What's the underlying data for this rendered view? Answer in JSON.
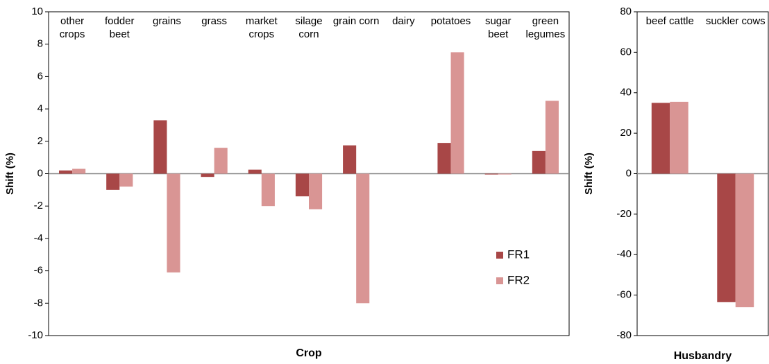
{
  "chart_data": [
    {
      "type": "bar",
      "x_label": "Crop",
      "y_label": "Shift (%)",
      "categories": [
        "other crops",
        "fodder beet",
        "grains",
        "grass",
        "market crops",
        "silage corn",
        "grain corn",
        "dairy",
        "potatoes",
        "sugar beet",
        "green legumes"
      ],
      "series": [
        {
          "name": "FR1",
          "color": "#a84747",
          "values": [
            0.2,
            -1.0,
            3.3,
            -0.2,
            0.25,
            -1.4,
            1.75,
            0,
            1.9,
            -0.05,
            1.4
          ]
        },
        {
          "name": "FR2",
          "color": "#d99594",
          "values": [
            0.3,
            -0.8,
            -6.1,
            1.6,
            -2.0,
            -2.2,
            -8.0,
            0,
            7.5,
            -0.05,
            4.5
          ]
        }
      ],
      "ylim": [
        -10,
        10
      ],
      "yticks": [
        -10,
        -8,
        -6,
        -4,
        -2,
        0,
        2,
        4,
        6,
        8,
        10
      ],
      "legend": true
    },
    {
      "type": "bar",
      "x_label": "Husbandry",
      "y_label": "Shift (%)",
      "categories": [
        "beef cattle",
        "suckler cows"
      ],
      "series": [
        {
          "color": "#a84747",
          "values": [
            35,
            -63.5
          ]
        },
        {
          "color": "#d99594",
          "values": [
            35.5,
            -66
          ]
        }
      ],
      "ylim": [
        -80,
        80
      ],
      "yticks": [
        -80,
        -60,
        -40,
        -20,
        0,
        20,
        40,
        60,
        80
      ],
      "legend": false
    }
  ]
}
